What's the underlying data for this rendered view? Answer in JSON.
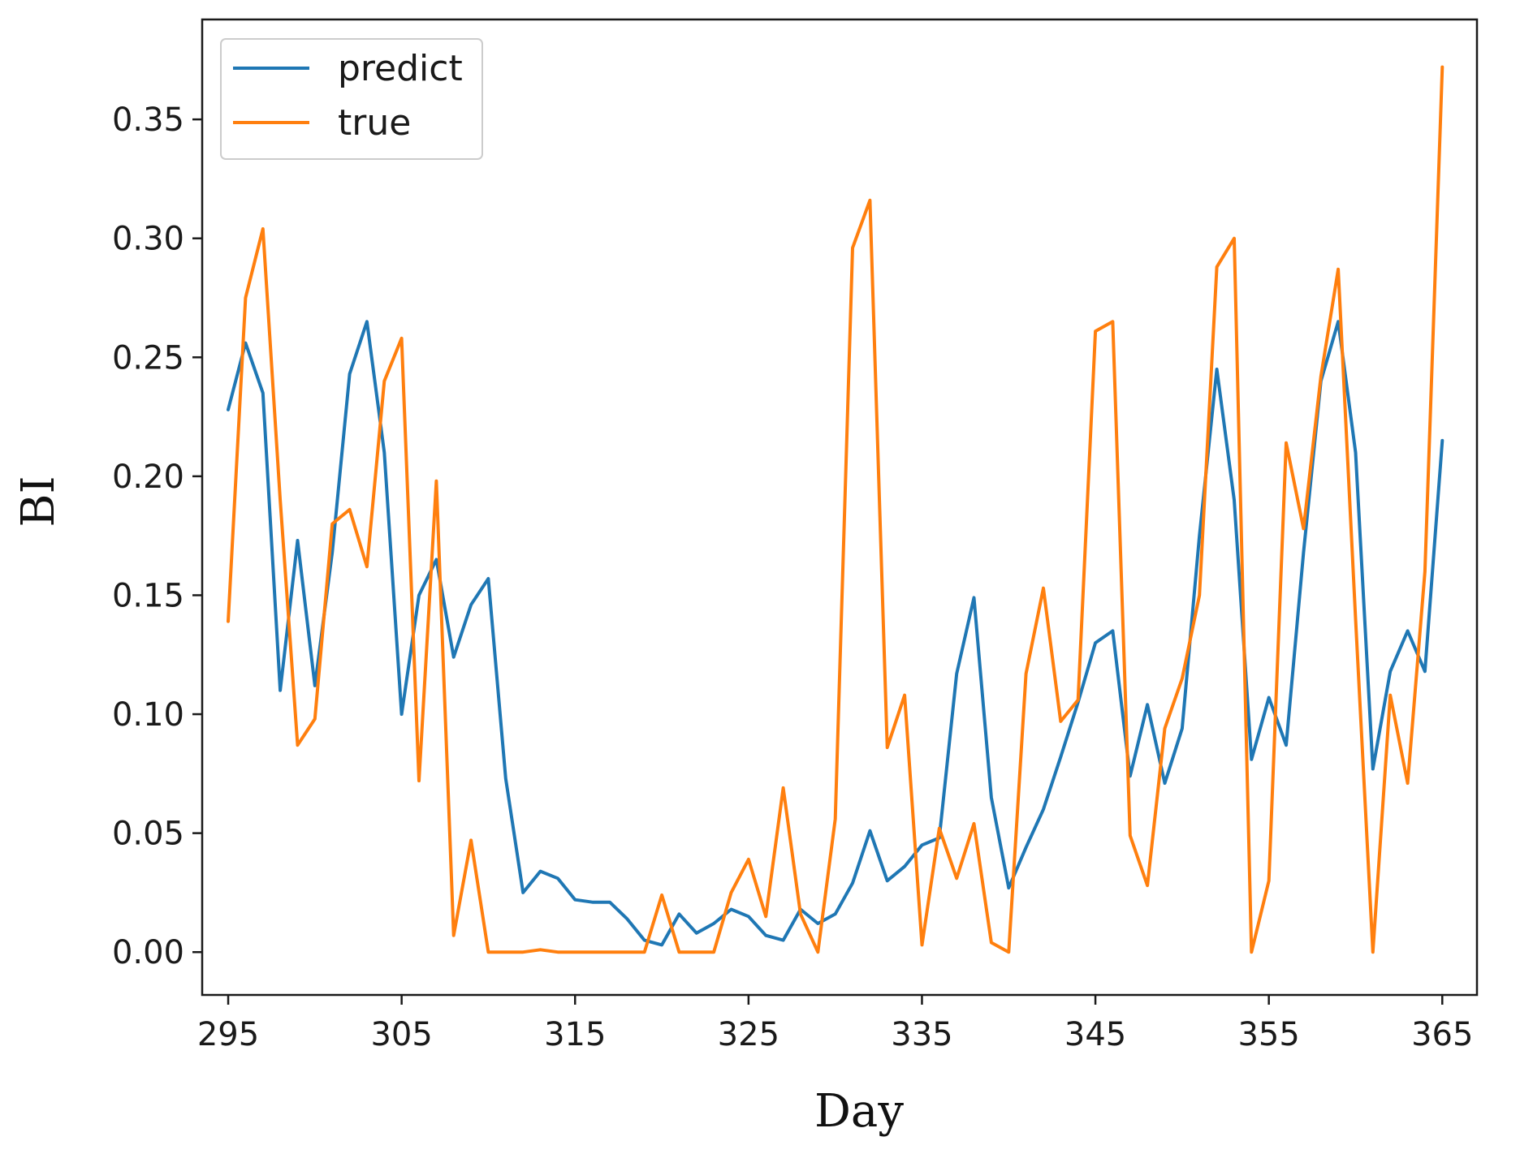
{
  "chart_data": {
    "type": "line",
    "xlabel": "Day",
    "ylabel": "BI",
    "xlim": [
      293.5,
      367
    ],
    "ylim": [
      -0.018,
      0.392
    ],
    "xticks": [
      295,
      305,
      315,
      325,
      335,
      345,
      355,
      365
    ],
    "yticks": [
      0.0,
      0.05,
      0.1,
      0.15,
      0.2,
      0.25,
      0.3,
      0.35
    ],
    "xtick_labels": [
      "295",
      "305",
      "315",
      "325",
      "335",
      "345",
      "355",
      "365"
    ],
    "ytick_labels": [
      "0.00",
      "0.05",
      "0.10",
      "0.15",
      "0.20",
      "0.25",
      "0.30",
      "0.35"
    ],
    "grid": false,
    "legend_position": "top-left",
    "x": [
      295,
      296,
      297,
      298,
      299,
      300,
      301,
      302,
      303,
      304,
      305,
      306,
      307,
      308,
      309,
      310,
      311,
      312,
      313,
      314,
      315,
      316,
      317,
      318,
      319,
      320,
      321,
      322,
      323,
      324,
      325,
      326,
      327,
      328,
      329,
      330,
      331,
      332,
      333,
      334,
      335,
      336,
      337,
      338,
      339,
      340,
      341,
      342,
      343,
      344,
      345,
      346,
      347,
      348,
      349,
      350,
      351,
      352,
      353,
      354,
      355,
      356,
      357,
      358,
      359,
      360,
      361,
      362,
      363,
      364,
      365
    ],
    "series": [
      {
        "name": "predict",
        "color": "#1f77b4",
        "values": [
          0.228,
          0.256,
          0.235,
          0.11,
          0.173,
          0.112,
          0.168,
          0.243,
          0.265,
          0.21,
          0.1,
          0.15,
          0.165,
          0.124,
          0.146,
          0.157,
          0.073,
          0.025,
          0.034,
          0.031,
          0.022,
          0.021,
          0.021,
          0.014,
          0.005,
          0.003,
          0.016,
          0.008,
          0.012,
          0.018,
          0.015,
          0.007,
          0.005,
          0.018,
          0.012,
          0.016,
          0.029,
          0.051,
          0.03,
          0.036,
          0.045,
          0.048,
          0.117,
          0.149,
          0.065,
          0.027,
          0.044,
          0.06,
          0.082,
          0.105,
          0.13,
          0.135,
          0.074,
          0.104,
          0.071,
          0.094,
          0.175,
          0.245,
          0.19,
          0.081,
          0.107,
          0.087,
          0.168,
          0.24,
          0.265,
          0.21,
          0.077,
          0.118,
          0.135,
          0.118,
          0.215
        ]
      },
      {
        "name": "true",
        "color": "#ff7f0e",
        "values": [
          0.139,
          0.275,
          0.304,
          0.19,
          0.087,
          0.098,
          0.18,
          0.186,
          0.162,
          0.24,
          0.258,
          0.072,
          0.198,
          0.007,
          0.047,
          0.0,
          0.0,
          0.0,
          0.001,
          0.0,
          0.0,
          0.0,
          0.0,
          0.0,
          0.0,
          0.024,
          0.0,
          0.0,
          0.0,
          0.025,
          0.039,
          0.015,
          0.069,
          0.016,
          0.0,
          0.056,
          0.296,
          0.316,
          0.086,
          0.108,
          0.003,
          0.052,
          0.031,
          0.054,
          0.004,
          0.0,
          0.117,
          0.153,
          0.097,
          0.106,
          0.261,
          0.265,
          0.049,
          0.028,
          0.094,
          0.115,
          0.15,
          0.288,
          0.3,
          0.0,
          0.03,
          0.214,
          0.178,
          0.242,
          0.287,
          0.14,
          0.0,
          0.108,
          0.071,
          0.16,
          0.372
        ]
      }
    ]
  }
}
